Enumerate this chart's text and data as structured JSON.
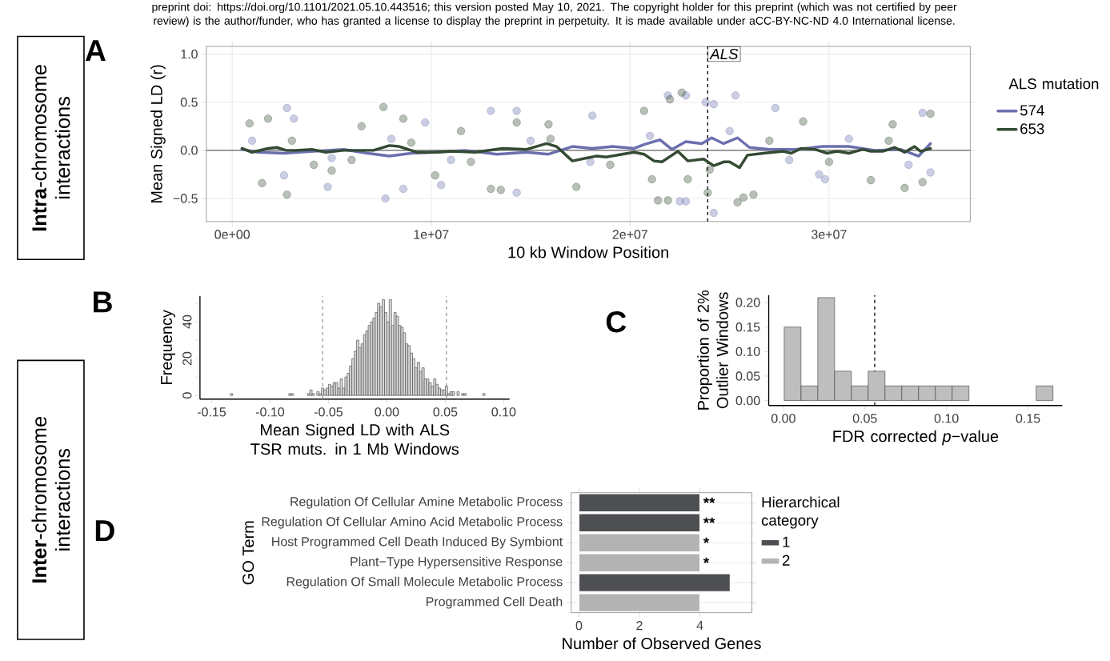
{
  "chart_data": [
    {
      "type": "scatter",
      "title": "A",
      "xlabel": "10 kb Window Position",
      "ylabel": "Mean Signed LD (r)",
      "legend_title": "ALS mutation",
      "legend": "right",
      "grid": true,
      "xlim": [
        -1300000,
        37100000
      ],
      "ylim": [
        -0.74,
        1.08
      ],
      "xticks": [
        {
          "value": 0,
          "label": "0e+00"
        },
        {
          "value": 10000000,
          "label": "1e+07"
        },
        {
          "value": 20000000,
          "label": "2e+07"
        },
        {
          "value": 30000000,
          "label": "3e+07"
        }
      ],
      "yticks": [
        {
          "value": -0.5,
          "label": "−0.5"
        },
        {
          "value": 0,
          "label": "0.0"
        },
        {
          "value": 0.5,
          "label": "0.5"
        },
        {
          "value": 1,
          "label": "1.0"
        }
      ],
      "ref_lines": [
        {
          "axis": "y",
          "value": 0,
          "color": "#666666"
        },
        {
          "axis": "x",
          "value": 23900000,
          "label": "ALS",
          "color": "#000000",
          "line_style": "dashed"
        }
      ],
      "annotations": [
        "preprint doi: https://doi.org/10.1101/2021.05.10.443516; this version posted May 10, 2021. The copyright holder for this preprint (which was not certified by peer review) is the author/funder, who has granted a license to display the preprint in perpetuity. It is made available under aCC-BY-NC-ND 4.0 International license.",
        "**Intra**-chromosome interactions"
      ],
      "series": [
        {
          "type": "scatter",
          "color": "#6b6fae",
          "x": [
            2750000,
            3100000,
            7700000,
            8600000,
            4800000,
            13000000,
            14300000,
            18100000,
            9700000,
            10500000,
            14300000,
            2600000,
            21900000,
            22800000,
            25300000,
            24200000,
            22500000,
            22800000,
            27300000,
            34700000,
            29800000,
            29500000,
            35100000,
            23800000,
            24200000,
            1000000,
            5000000,
            8000000,
            11000000,
            15000000,
            18000000,
            21000000,
            25000000,
            28000000,
            31000000,
            34000000
          ],
          "values": [
            0.44,
            0.33,
            -0.5,
            -0.4,
            -0.38,
            0.41,
            0.41,
            0.36,
            0.29,
            -0.36,
            -0.44,
            -0.26,
            0.57,
            0.57,
            0.57,
            -0.65,
            -0.53,
            -0.53,
            0.44,
            0.39,
            -0.3,
            -0.25,
            -0.23,
            0.5,
            0.48,
            0.1,
            -0.08,
            0.12,
            -0.1,
            0.1,
            -0.12,
            0.15,
            0.2,
            -0.1,
            0.12,
            -0.15
          ]
        },
        {
          "type": "scatter",
          "color": "#344a33",
          "x": [
            870000,
            1800000,
            2750000,
            1500000,
            7600000,
            8600000,
            10200000,
            13000000,
            13500000,
            14300000,
            15900000,
            17300000,
            5000000,
            4100000,
            11500000,
            6500000,
            22600000,
            22000000,
            20700000,
            21400000,
            21900000,
            25400000,
            25700000,
            26200000,
            23900000,
            28700000,
            32100000,
            33800000,
            34700000,
            35100000,
            33200000,
            22900000,
            21100000,
            3000000,
            6000000,
            9000000,
            12000000,
            16000000,
            19000000,
            24000000,
            27000000,
            30000000,
            33000000
          ],
          "values": [
            0.28,
            0.33,
            -0.46,
            -0.34,
            0.45,
            0.33,
            -0.26,
            -0.4,
            -0.41,
            0.29,
            0.27,
            -0.38,
            -0.21,
            -0.15,
            0.2,
            0.25,
            0.6,
            0.53,
            0.41,
            -0.52,
            -0.52,
            -0.54,
            -0.49,
            -0.46,
            -0.44,
            0.3,
            -0.31,
            -0.39,
            -0.33,
            0.38,
            0.27,
            -0.3,
            -0.3,
            0.1,
            -0.1,
            0.08,
            -0.12,
            0.12,
            -0.15,
            -0.2,
            0.1,
            -0.12,
            0.1
          ]
        },
        {
          "type": "line",
          "name": "574",
          "color": "#6b6fae",
          "x": [
            490000,
            1300000,
            2600000,
            4100000,
            5600000,
            6800000,
            7900000,
            9000000,
            10200000,
            11700000,
            13300000,
            14800000,
            15900000,
            17100000,
            18100000,
            19100000,
            20200000,
            20700000,
            21500000,
            22100000,
            22800000,
            23600000,
            24100000,
            24700000,
            25400000,
            26000000,
            27000000,
            28300000,
            29700000,
            31000000,
            32300000,
            33600000,
            34500000,
            35100000
          ],
          "values": [
            0.01,
            -0.02,
            -0.03,
            -0.01,
            0.01,
            -0.03,
            -0.06,
            -0.03,
            -0.02,
            0,
            -0.04,
            -0.02,
            -0.04,
            0.04,
            0.02,
            0.04,
            0.02,
            0.06,
            0.11,
            0.01,
            0.09,
            0.07,
            0.13,
            0.07,
            0.13,
            0.03,
            0.01,
            0.01,
            0.04,
            0.04,
            0,
            0.01,
            -0.06,
            0.07
          ]
        },
        {
          "type": "line",
          "name": "653",
          "color": "#344a33",
          "x": [
            490000,
            1000000,
            1800000,
            2250000,
            2700000,
            3200000,
            4000000,
            4700000,
            5600000,
            6500000,
            7100000,
            7900000,
            8400000,
            9300000,
            10200000,
            11100000,
            12200000,
            13600000,
            14800000,
            15800000,
            16300000,
            17100000,
            17800000,
            18300000,
            18800000,
            19600000,
            20200000,
            20700000,
            21200000,
            21600000,
            22400000,
            22900000,
            23700000,
            24200000,
            24700000,
            25000000,
            25500000,
            25900000,
            26700000,
            27700000,
            28100000,
            28600000,
            29300000,
            29900000,
            30400000,
            31000000,
            31700000,
            32100000,
            32700000,
            33300000,
            33800000,
            34300000,
            34600000,
            35100000
          ],
          "values": [
            0.02,
            -0.02,
            0.02,
            0.03,
            0,
            0,
            0.01,
            -0.02,
            0,
            0,
            0,
            0.05,
            0.04,
            -0.02,
            -0.02,
            -0.01,
            -0.02,
            0.02,
            0.01,
            0.07,
            0.04,
            -0.11,
            -0.08,
            -0.06,
            -0.07,
            -0.04,
            -0.02,
            -0.04,
            -0.11,
            -0.12,
            -0.01,
            -0.11,
            -0.09,
            -0.16,
            -0.12,
            -0.12,
            -0.18,
            -0.05,
            -0.03,
            -0.01,
            -0.03,
            0.02,
            0.01,
            -0.03,
            -0.01,
            -0.03,
            0.01,
            -0.01,
            -0.01,
            0.03,
            -0.02,
            0.04,
            -0.01,
            0.02
          ]
        }
      ]
    },
    {
      "type": "histogram",
      "title": "B",
      "xlabel": "Mean Signed LD with ALS TSR muts. in 1 Mb Windows",
      "ylabel": "Frequency",
      "color": "#d9d9d9",
      "xlim": [
        -0.16,
        0.105
      ],
      "ylim": [
        -2,
        54
      ],
      "xticks": [
        {
          "value": -0.15,
          "label": "-0.15"
        },
        {
          "value": -0.1,
          "label": "-0.10"
        },
        {
          "value": -0.05,
          "label": "-0.05"
        },
        {
          "value": 0,
          "label": "0.00"
        },
        {
          "value": 0.05,
          "label": "0.05"
        },
        {
          "value": 0.1,
          "label": "0.10"
        }
      ],
      "yticks": [
        0,
        {
          "value": 10,
          "label": null
        },
        20,
        {
          "value": 30,
          "label": null
        },
        40,
        {
          "value": 50,
          "label": null
        }
      ],
      "ref_lines": [
        {
          "axis": "x",
          "value": -0.055,
          "color": "#999999",
          "line_style": "dashed"
        },
        {
          "axis": "x",
          "value": 0.051,
          "color": "#999999",
          "line_style": "dashed"
        }
      ],
      "annotations": [
        "**Inter**-chromosome interactions"
      ],
      "bins": [
        -0.134,
        -0.132,
        -0.13,
        -0.128,
        -0.126,
        -0.124,
        -0.122,
        -0.12,
        -0.118,
        -0.116,
        -0.114,
        -0.112,
        -0.11,
        -0.108,
        -0.106,
        -0.104,
        -0.102,
        -0.1,
        -0.098,
        -0.096,
        -0.094,
        -0.092,
        -0.09,
        -0.088,
        -0.086,
        -0.084,
        -0.082,
        -0.08,
        -0.078,
        -0.076,
        -0.074,
        -0.072,
        -0.07,
        -0.068,
        -0.066,
        -0.064,
        -0.062,
        -0.06,
        -0.058,
        -0.056,
        -0.054,
        -0.052,
        -0.05,
        -0.048,
        -0.046,
        -0.044,
        -0.042,
        -0.04,
        -0.038,
        -0.036,
        -0.034,
        -0.032,
        -0.03,
        -0.028,
        -0.026,
        -0.024,
        -0.022,
        -0.02,
        -0.018,
        -0.016,
        -0.014,
        -0.012,
        -0.01,
        -0.008,
        -0.006,
        -0.004,
        -0.002,
        0,
        0.002,
        0.004,
        0.006,
        0.008,
        0.01,
        0.012,
        0.014,
        0.016,
        0.018,
        0.02,
        0.022,
        0.024,
        0.026,
        0.028,
        0.03,
        0.032,
        0.034,
        0.036,
        0.038,
        0.04,
        0.042,
        0.044,
        0.046,
        0.048,
        0.05,
        0.052,
        0.054,
        0.056,
        0.058,
        0.06,
        0.062,
        0.064,
        0.066,
        0.068,
        0.07,
        0.072,
        0.074,
        0.076,
        0.078,
        0.08,
        0.082,
        0.084
      ],
      "values": [
        1,
        0,
        0,
        0,
        0,
        0,
        0,
        0,
        0,
        0,
        0,
        0,
        0,
        0,
        0,
        0,
        0,
        0,
        0,
        0,
        0,
        0,
        0,
        0,
        0,
        1,
        1,
        0,
        0,
        0,
        0,
        0,
        0,
        1,
        3,
        1,
        0,
        2,
        1,
        4,
        3,
        4,
        6,
        5,
        7,
        7,
        4,
        9,
        4,
        10,
        12,
        16,
        20,
        24,
        30,
        26,
        28,
        33,
        35,
        38,
        40,
        42,
        45,
        50,
        48,
        52,
        45,
        40,
        52,
        38,
        45,
        43,
        38,
        37,
        34,
        28,
        27,
        23,
        20,
        15,
        18,
        13,
        15,
        9,
        9,
        7,
        5,
        9,
        6,
        4,
        3,
        3,
        5,
        1,
        2,
        2,
        0,
        2,
        0,
        1,
        1,
        0,
        0,
        0,
        0,
        0,
        0,
        0,
        1
      ]
    },
    {
      "type": "histogram",
      "title": "C",
      "xlabel": "FDR corrected *p*−value",
      "ylabel": "Proportion of 2% Outlier Windows",
      "color": "#bebebe",
      "xlim": [
        -0.009,
        0.171
      ],
      "ylim": [
        -0.01,
        0.215
      ],
      "xticks": [
        {
          "value": 0,
          "label": "0.00"
        },
        {
          "value": 0.05,
          "label": "0.05"
        },
        {
          "value": 0.1,
          "label": "0.10"
        },
        {
          "value": 0.15,
          "label": "0.15"
        }
      ],
      "yticks": [
        {
          "value": 0,
          "label": "0.00"
        },
        {
          "value": 0.05,
          "label": "0.05"
        },
        {
          "value": 0.1,
          "label": "0.10"
        },
        {
          "value": 0.15,
          "label": "0.15"
        },
        {
          "value": 0.2,
          "label": "0.20"
        }
      ],
      "ref_lines": [
        {
          "axis": "x",
          "value": 0.056,
          "color": "#000000",
          "line_style": "dashed"
        }
      ],
      "bins": [
        0.0005,
        0.0108,
        0.0211,
        0.0314,
        0.0417,
        0.052,
        0.0623,
        0.0726,
        0.0829,
        0.0932,
        0.1035,
        0.1138,
        0.1241,
        0.1344,
        0.1447,
        0.155,
        0.1653
      ],
      "values": [
        0.15,
        0.03,
        0.21,
        0.06,
        0.03,
        0.06,
        0.03,
        0.03,
        0.03,
        0.03,
        0.03,
        0,
        0,
        0,
        0,
        0.03
      ]
    },
    {
      "type": "bar",
      "orientation": "horizontal",
      "title": "D",
      "xlabel": "Number of Observed Genes",
      "ylabel": "GO Term",
      "legend_title": "Hierarchical category",
      "legend": "right",
      "grid": true,
      "categories": [
        "Regulation Of Cellular Amine Metabolic Process",
        "Regulation Of Cellular Amino Acid Metabolic Process",
        "Host Programmed Cell Death Induced By Symbiont",
        "Plant−Type Hypersensitive Response",
        "Regulation Of Small Molecule Metabolic Process",
        "Programmed Cell Death"
      ],
      "xlim": [
        -0.26,
        5.72
      ],
      "xticks": [
        0,
        2,
        4
      ],
      "series": [
        {
          "name": "1",
          "color": "#4d4f53",
          "values": [
            4,
            4,
            null,
            null,
            5,
            null
          ]
        },
        {
          "name": "2",
          "color": "#b3b3b3",
          "values": [
            null,
            null,
            4,
            4,
            null,
            4
          ]
        }
      ],
      "annotations": [
        "**",
        "**",
        "*",
        "*"
      ]
    }
  ]
}
